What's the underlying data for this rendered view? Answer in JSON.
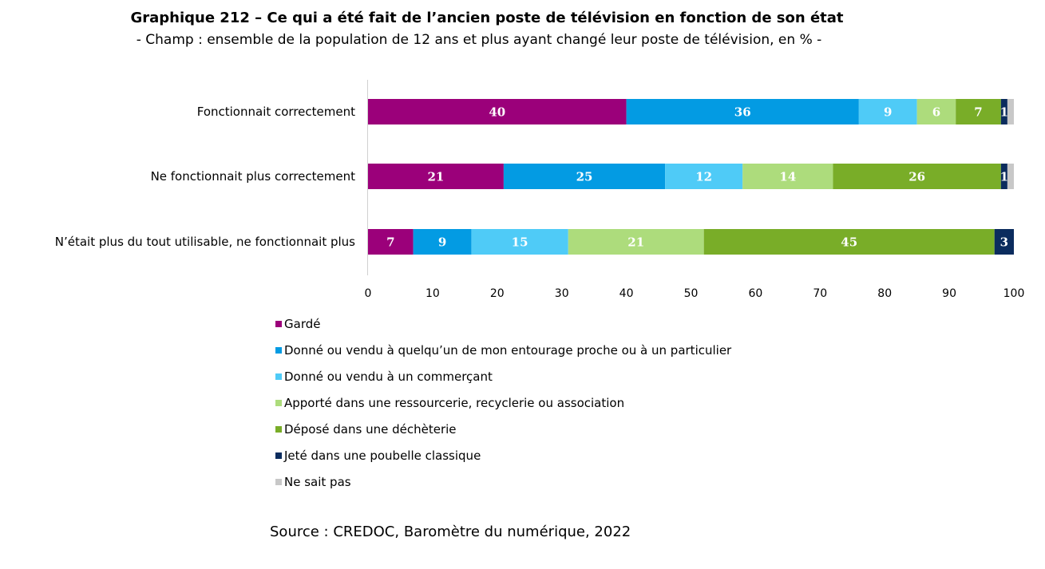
{
  "title": "Graphique 212 – Ce qui a été fait de l’ancien poste de télévision en fonction de son état",
  "subtitle": "- Champ : ensemble de la population de 12 ans et plus ayant changé leur poste de télévision, en % -",
  "source": "Source : CREDOC, Baromètre du numérique, 2022",
  "chart_data": {
    "type": "bar",
    "orientation": "horizontal",
    "stacked": true,
    "categories": [
      "Fonctionnait correctement",
      "Ne fonctionnait plus correctement",
      "N’était plus du tout utilisable, ne fonctionnait plus"
    ],
    "series": [
      {
        "name": "Gardé",
        "color": "#9b007a",
        "values": [
          40,
          21,
          7
        ],
        "labels": [
          "40",
          "21",
          "7"
        ]
      },
      {
        "name": "Donné ou vendu à quelqu’un de mon entourage proche ou à un particulier",
        "color": "#039be3",
        "values": [
          36,
          25,
          9
        ],
        "labels": [
          "36",
          "25",
          "9"
        ]
      },
      {
        "name": "Donné ou vendu à un commerçant",
        "color": "#4fcbf7",
        "values": [
          9,
          12,
          15
        ],
        "labels": [
          "9",
          "12",
          "15"
        ]
      },
      {
        "name": "Apporté dans une ressourcerie, recyclerie ou association",
        "color": "#addc7c",
        "values": [
          6,
          14,
          21
        ],
        "labels": [
          "6",
          "14",
          "21"
        ]
      },
      {
        "name": "Déposé dans une déchèterie",
        "color": "#79ad28",
        "values": [
          7,
          26,
          45
        ],
        "labels": [
          "7",
          "26",
          "45"
        ]
      },
      {
        "name": "Jeté dans une poubelle classique",
        "color": "#0b2c5e",
        "values": [
          1,
          1,
          3
        ],
        "labels": [
          "1",
          "1",
          "3"
        ]
      },
      {
        "name": "Ne sait pas",
        "color": "#c8c8c8",
        "values": [
          1,
          1,
          0
        ],
        "labels": [
          "",
          "",
          ""
        ]
      }
    ],
    "xlim": [
      0,
      100
    ],
    "xticks": [
      "0",
      "10",
      "20",
      "30",
      "40",
      "50",
      "60",
      "70",
      "80",
      "90",
      "100"
    ],
    "legend_position": "bottom",
    "grid": false
  }
}
